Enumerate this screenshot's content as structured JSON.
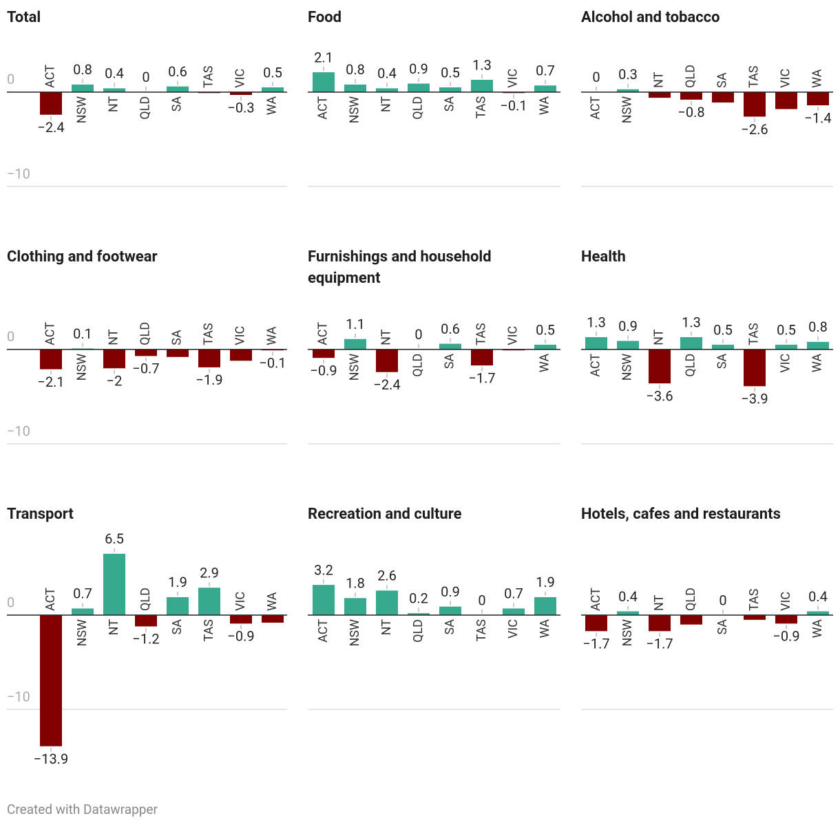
{
  "chart_data": [
    {
      "type": "bar",
      "title": "Total",
      "categories": [
        "ACT",
        "NSW",
        "NT",
        "QLD",
        "SA",
        "TAS",
        "VIC",
        "WA"
      ],
      "values": [
        -2.4,
        0.8,
        0.4,
        0,
        0.6,
        -0.1,
        -0.3,
        0.5
      ],
      "value_labels": [
        "−2.4",
        "0.8",
        "0.4",
        "0",
        "0.6",
        null,
        "−0.3",
        "0.5"
      ],
      "ylim": [
        -10,
        4
      ],
      "yticks": [
        0,
        {
          "value": -10,
          "label": "−10"
        }
      ]
    },
    {
      "type": "bar",
      "title": "Food",
      "categories": [
        "ACT",
        "NSW",
        "NT",
        "QLD",
        "SA",
        "TAS",
        "VIC",
        "WA"
      ],
      "values": [
        2.1,
        0.8,
        0.4,
        0.9,
        0.5,
        1.3,
        -0.1,
        0.7
      ],
      "value_labels": [
        "2.1",
        "0.8",
        "0.4",
        "0.9",
        "0.5",
        "1.3",
        "−0.1",
        "0.7"
      ],
      "ylim": [
        -10,
        4
      ]
    },
    {
      "type": "bar",
      "title": "Alcohol and tobacco",
      "categories": [
        "ACT",
        "NSW",
        "NT",
        "QLD",
        "SA",
        "TAS",
        "VIC",
        "WA"
      ],
      "values": [
        0,
        0.3,
        -0.6,
        -0.8,
        -1.1,
        -2.6,
        -1.8,
        -1.4
      ],
      "value_labels": [
        "0",
        "0.3",
        null,
        "−0.8",
        null,
        "−2.6",
        null,
        "−1.4"
      ],
      "ylim": [
        -10,
        4
      ]
    },
    {
      "type": "bar",
      "title": "Clothing and footwear",
      "categories": [
        "ACT",
        "NSW",
        "NT",
        "QLD",
        "SA",
        "TAS",
        "VIC",
        "WA"
      ],
      "values": [
        -2.1,
        0.1,
        -2,
        -0.7,
        -0.8,
        -1.9,
        -1.2,
        -0.1
      ],
      "value_labels": [
        "−2.1",
        "0.1",
        "−2",
        "−0.7",
        null,
        "−1.9",
        null,
        "−0.1"
      ],
      "ylim": [
        -10,
        4
      ],
      "yticks": [
        0,
        {
          "value": -10,
          "label": "−10"
        }
      ]
    },
    {
      "type": "bar",
      "title": "Furnishings and household equipment",
      "categories": [
        "ACT",
        "NSW",
        "NT",
        "QLD",
        "SA",
        "TAS",
        "VIC",
        "WA"
      ],
      "values": [
        -0.9,
        1.1,
        -2.4,
        0,
        0.6,
        -1.7,
        -0.1,
        0.5
      ],
      "value_labels": [
        "−0.9",
        "1.1",
        "−2.4",
        "0",
        "0.6",
        "−1.7",
        null,
        "0.5"
      ],
      "ylim": [
        -10,
        4
      ]
    },
    {
      "type": "bar",
      "title": "Health",
      "categories": [
        "ACT",
        "NSW",
        "NT",
        "QLD",
        "SA",
        "TAS",
        "VIC",
        "WA"
      ],
      "values": [
        1.3,
        0.9,
        -3.6,
        1.3,
        0.5,
        -3.9,
        0.5,
        0.8
      ],
      "value_labels": [
        "1.3",
        "0.9",
        "−3.6",
        "1.3",
        "0.5",
        "−3.9",
        "0.5",
        "0.8"
      ],
      "ylim": [
        -10,
        4
      ]
    },
    {
      "type": "bar",
      "title": "Transport",
      "categories": [
        "ACT",
        "NSW",
        "NT",
        "QLD",
        "SA",
        "TAS",
        "VIC",
        "WA"
      ],
      "values": [
        -13.9,
        0.7,
        6.5,
        -1.2,
        1.9,
        2.9,
        -0.9,
        -0.8
      ],
      "value_labels": [
        "−13.9",
        "0.7",
        "6.5",
        "−1.2",
        "1.9",
        "2.9",
        "−0.9",
        null
      ],
      "ylim": [
        -14,
        7
      ],
      "yticks": [
        0,
        {
          "value": -10,
          "label": "−10"
        }
      ]
    },
    {
      "type": "bar",
      "title": "Recreation and culture",
      "categories": [
        "ACT",
        "NSW",
        "NT",
        "QLD",
        "SA",
        "TAS",
        "VIC",
        "WA"
      ],
      "values": [
        3.2,
        1.8,
        2.6,
        0.2,
        0.9,
        0,
        0.7,
        1.9
      ],
      "value_labels": [
        "3.2",
        "1.8",
        "2.6",
        "0.2",
        "0.9",
        "0",
        "0.7",
        "1.9"
      ],
      "ylim": [
        -14,
        7
      ]
    },
    {
      "type": "bar",
      "title": "Hotels, cafes and restaurants",
      "categories": [
        "ACT",
        "NSW",
        "NT",
        "QLD",
        "SA",
        "TAS",
        "VIC",
        "WA"
      ],
      "values": [
        -1.7,
        0.4,
        -1.7,
        -1.0,
        0,
        -0.5,
        -0.9,
        0.4
      ],
      "value_labels": [
        "−1.7",
        "0.4",
        "−1.7",
        null,
        "0",
        null,
        "−0.9",
        "0.4"
      ],
      "ylim": [
        -14,
        7
      ]
    }
  ],
  "colors": {
    "positive": "#36a98e",
    "negative": "#800000"
  },
  "footer": "Created with Datawrapper"
}
